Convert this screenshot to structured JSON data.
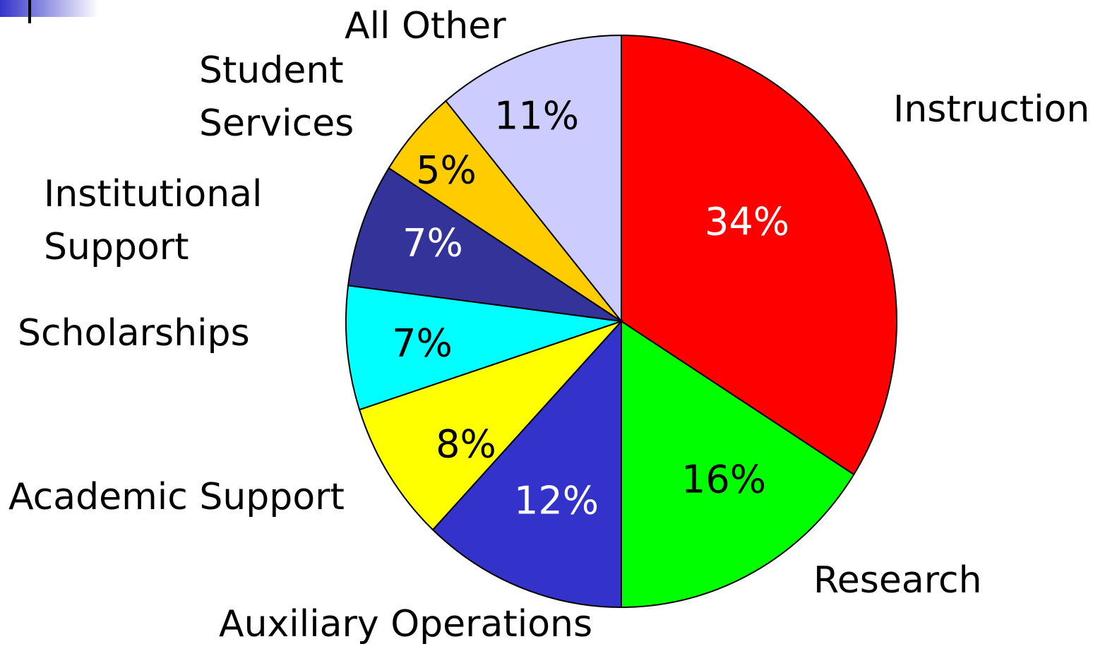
{
  "chart_data": {
    "type": "pie",
    "categories": [
      "Instruction",
      "Research",
      "Auxiliary Operations",
      "Academic Support",
      "Scholarships",
      "Institutional Support",
      "Student Services",
      "All Other"
    ],
    "values": [
      34,
      16,
      12,
      8,
      7,
      7,
      5,
      11
    ],
    "value_labels": [
      "34%",
      "16%",
      "12%",
      "8%",
      "7%",
      "7%",
      "5%",
      "11%"
    ],
    "colors": [
      "#ff0000",
      "#00ff00",
      "#3333cc",
      "#ffff00",
      "#00ffff",
      "#333399",
      "#ffcc00",
      "#ccccff"
    ],
    "label_colors": [
      "#ffffff",
      "#000000",
      "#ffffff",
      "#000000",
      "#000000",
      "#ffffff",
      "#000000",
      "#000000"
    ]
  }
}
